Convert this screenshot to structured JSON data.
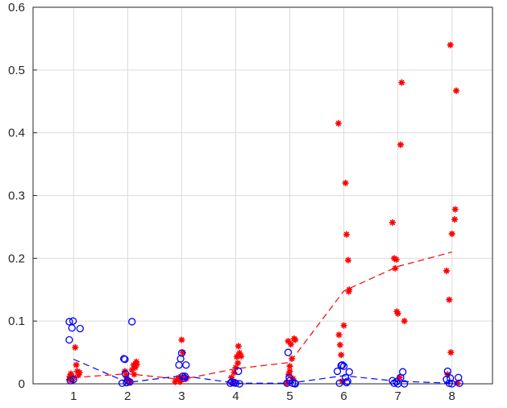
{
  "chart_data": {
    "type": "scatter",
    "title": "",
    "xlabel": "",
    "ylabel": "",
    "xlim": [
      0.25,
      8.75
    ],
    "ylim": [
      0,
      0.6
    ],
    "xticks": [
      1,
      2,
      3,
      4,
      5,
      6,
      7,
      8
    ],
    "yticks": [
      0,
      0.1,
      0.2,
      0.3,
      0.4,
      0.5,
      0.6
    ],
    "grid": true,
    "series": [
      {
        "marker": "star",
        "color": "#ff0000",
        "points": [
          [
            0.92,
            0.007
          ],
          [
            0.93,
            0.012
          ],
          [
            0.95,
            0.016
          ],
          [
            0.97,
            0.005
          ],
          [
            1.0,
            0.01
          ],
          [
            1.03,
            0.058
          ],
          [
            1.05,
            0.03
          ],
          [
            1.07,
            0.02
          ],
          [
            1.09,
            0.014
          ],
          [
            1.11,
            0.018
          ],
          [
            1.95,
            0.02
          ],
          [
            1.97,
            0.012
          ],
          [
            2.0,
            0.006
          ],
          [
            2.05,
            0.003
          ],
          [
            2.08,
            0.022
          ],
          [
            2.11,
            0.03
          ],
          [
            2.12,
            0.015
          ],
          [
            2.14,
            0.026
          ],
          [
            2.16,
            0.035
          ],
          [
            2.17,
            0.031
          ],
          [
            2.88,
            0.003
          ],
          [
            2.9,
            0.006
          ],
          [
            2.95,
            0.01
          ],
          [
            2.97,
            0.003
          ],
          [
            3.0,
            0.07
          ],
          [
            3.02,
            0.05
          ],
          [
            3.05,
            0.011
          ],
          [
            3.08,
            0.008
          ],
          [
            3.95,
            0.001
          ],
          [
            3.92,
            0.01
          ],
          [
            3.97,
            0.018
          ],
          [
            4.0,
            0.026
          ],
          [
            4.02,
            0.043
          ],
          [
            4.05,
            0.06
          ],
          [
            4.07,
            0.049
          ],
          [
            4.1,
            0.044
          ],
          [
            4.04,
            0.033
          ],
          [
            4.95,
            0.001
          ],
          [
            4.97,
            0.068
          ],
          [
            4.98,
            0.015
          ],
          [
            5.0,
            0.02
          ],
          [
            5.0,
            0.028
          ],
          [
            5.02,
            0.063
          ],
          [
            5.04,
            0.04
          ],
          [
            5.06,
            0.008
          ],
          [
            5.08,
            0.072
          ],
          [
            5.1,
            0.07
          ],
          [
            5.9,
            0.415
          ],
          [
            5.91,
            0.078
          ],
          [
            5.93,
            0.062
          ],
          [
            5.95,
            0.046
          ],
          [
            5.97,
            0.004
          ],
          [
            6.0,
            0.093
          ],
          [
            6.03,
            0.32
          ],
          [
            6.05,
            0.238
          ],
          [
            6.08,
            0.197
          ],
          [
            6.1,
            0.15
          ],
          [
            6.09,
            0.147
          ],
          [
            6.9,
            0.257
          ],
          [
            6.93,
            0.2
          ],
          [
            6.95,
            0.184
          ],
          [
            6.97,
            0.198
          ],
          [
            6.98,
            0.115
          ],
          [
            7.0,
            0.112
          ],
          [
            7.05,
            0.381
          ],
          [
            7.07,
            0.48
          ],
          [
            7.12,
            0.1
          ],
          [
            7.03,
            0.01
          ],
          [
            7.9,
            0.18
          ],
          [
            7.92,
            0.015
          ],
          [
            7.95,
            0.134
          ],
          [
            7.97,
            0.54
          ],
          [
            7.98,
            0.05
          ],
          [
            8.0,
            0.239
          ],
          [
            8.05,
            0.262
          ],
          [
            8.06,
            0.278
          ],
          [
            8.08,
            0.467
          ],
          [
            8.1,
            0.001
          ]
        ]
      },
      {
        "marker": "circle",
        "color": "#0000ff",
        "points": [
          [
            0.92,
            0.099
          ],
          [
            0.92,
            0.07
          ],
          [
            0.94,
            0.005
          ],
          [
            0.97,
            0.089
          ],
          [
            0.99,
            0.1
          ],
          [
            1.0,
            0.007
          ],
          [
            1.12,
            0.088
          ],
          [
            1.9,
            0.001
          ],
          [
            1.93,
            0.04
          ],
          [
            1.95,
            0.039
          ],
          [
            1.98,
            0.002
          ],
          [
            2.0,
            0.005
          ],
          [
            2.04,
            0.003
          ],
          [
            2.08,
            0.099
          ],
          [
            1.96,
            0.016
          ],
          [
            2.95,
            0.03
          ],
          [
            2.98,
            0.04
          ],
          [
            3.0,
            0.049
          ],
          [
            3.02,
            0.012
          ],
          [
            3.05,
            0.009
          ],
          [
            3.08,
            0.03
          ],
          [
            3.06,
            0.012
          ],
          [
            3.9,
            0.001
          ],
          [
            3.93,
            0.003
          ],
          [
            3.97,
            0.002
          ],
          [
            4.0,
            0.001
          ],
          [
            4.05,
            0.02
          ],
          [
            4.07,
            0.0
          ],
          [
            4.95,
            0.001
          ],
          [
            4.97,
            0.05
          ],
          [
            4.99,
            0.01
          ],
          [
            5.0,
            0.005
          ],
          [
            5.05,
            0.001
          ],
          [
            5.09,
            0.001
          ],
          [
            5.1,
            0.0
          ],
          [
            5.88,
            0.02
          ],
          [
            5.92,
            0.001
          ],
          [
            5.95,
            0.029
          ],
          [
            5.97,
            0.03
          ],
          [
            6.0,
            0.028
          ],
          [
            6.03,
            0.01
          ],
          [
            6.05,
            0.002
          ],
          [
            6.07,
            0.004
          ],
          [
            6.1,
            0.019
          ],
          [
            6.9,
            0.005
          ],
          [
            6.93,
            0.001
          ],
          [
            6.97,
            0.003
          ],
          [
            7.0,
            0.0
          ],
          [
            7.05,
            0.01
          ],
          [
            7.09,
            0.019
          ],
          [
            7.12,
            0.0
          ],
          [
            7.9,
            0.007
          ],
          [
            7.92,
            0.02
          ],
          [
            7.95,
            0.001
          ],
          [
            7.97,
            0.009
          ],
          [
            8.0,
            0.0
          ],
          [
            8.12,
            0.01
          ],
          [
            8.14,
            0.001
          ]
        ]
      },
      {
        "line": "dashed",
        "color": "#ff0000",
        "x": [
          1,
          2,
          3,
          4,
          5,
          6,
          7,
          8
        ],
        "values": [
          0.01,
          0.016,
          0.007,
          0.024,
          0.034,
          0.148,
          0.187,
          0.21
        ]
      },
      {
        "line": "dashed",
        "color": "#0000ff",
        "x": [
          1,
          2,
          3,
          4,
          5,
          6,
          7,
          8
        ],
        "values": [
          0.039,
          0.002,
          0.013,
          0.001,
          0.001,
          0.013,
          0.004,
          0.001
        ]
      }
    ]
  }
}
